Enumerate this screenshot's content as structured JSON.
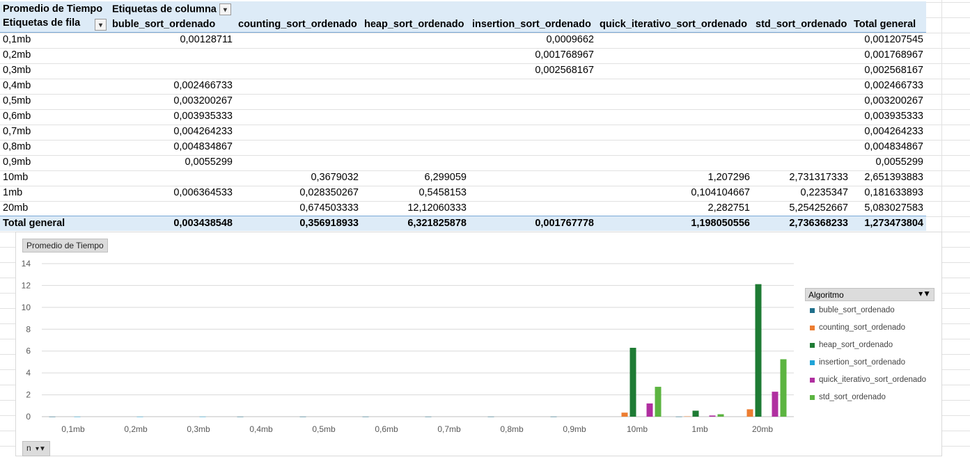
{
  "pivot": {
    "value_label": "Promedio de Tiempo",
    "column_label": "Etiquetas de columna",
    "row_label": "Etiquetas de fila",
    "columns": [
      "buble_sort_ordenado",
      "counting_sort_ordenado",
      "heap_sort_ordenado",
      "insertion_sort_ordenado",
      "quick_iterativo_sort_ordenado",
      "std_sort_ordenado",
      "Total general"
    ],
    "rows": [
      {
        "label": "0,1mb",
        "cells": [
          "0,00128711",
          "",
          "",
          "0,0009662",
          "",
          "",
          "0,001207545"
        ]
      },
      {
        "label": "0,2mb",
        "cells": [
          "",
          "",
          "",
          "0,001768967",
          "",
          "",
          "0,001768967"
        ]
      },
      {
        "label": "0,3mb",
        "cells": [
          "",
          "",
          "",
          "0,002568167",
          "",
          "",
          "0,002568167"
        ]
      },
      {
        "label": "0,4mb",
        "cells": [
          "0,002466733",
          "",
          "",
          "",
          "",
          "",
          "0,002466733"
        ]
      },
      {
        "label": "0,5mb",
        "cells": [
          "0,003200267",
          "",
          "",
          "",
          "",
          "",
          "0,003200267"
        ]
      },
      {
        "label": "0,6mb",
        "cells": [
          "0,003935333",
          "",
          "",
          "",
          "",
          "",
          "0,003935333"
        ]
      },
      {
        "label": "0,7mb",
        "cells": [
          "0,004264233",
          "",
          "",
          "",
          "",
          "",
          "0,004264233"
        ]
      },
      {
        "label": "0,8mb",
        "cells": [
          "0,004834867",
          "",
          "",
          "",
          "",
          "",
          "0,004834867"
        ]
      },
      {
        "label": "0,9mb",
        "cells": [
          "0,0055299",
          "",
          "",
          "",
          "",
          "",
          "0,0055299"
        ]
      },
      {
        "label": "10mb",
        "cells": [
          "",
          "0,3679032",
          "6,299059",
          "",
          "1,207296",
          "2,731317333",
          "2,651393883"
        ]
      },
      {
        "label": "1mb",
        "cells": [
          "0,006364533",
          "0,028350267",
          "0,5458153",
          "",
          "0,104104667",
          "0,2235347",
          "0,181633893"
        ]
      },
      {
        "label": "20mb",
        "cells": [
          "",
          "0,674503333",
          "12,12060333",
          "",
          "2,282751",
          "5,254252667",
          "5,083027583"
        ]
      }
    ],
    "total": {
      "label": "Total general",
      "cells": [
        "0,003438548",
        "0,356918933",
        "6,321825878",
        "0,001767778",
        "1,198050556",
        "2,736368233",
        "1,273473804"
      ]
    }
  },
  "chart_data": {
    "type": "bar",
    "value_button": "Promedio de Tiempo",
    "axis_button": "n",
    "legend_title": "Algoritmo",
    "categories": [
      "0,1mb",
      "0,2mb",
      "0,3mb",
      "0,4mb",
      "0,5mb",
      "0,6mb",
      "0,7mb",
      "0,8mb",
      "0,9mb",
      "10mb",
      "1mb",
      "20mb"
    ],
    "ylim": [
      0,
      14
    ],
    "yticks": [
      "0",
      "2",
      "4",
      "6",
      "8",
      "10",
      "12",
      "14"
    ],
    "grid": true,
    "legend_position": "right",
    "series": [
      {
        "name": "buble_sort_ordenado",
        "color": "#1f6f8b",
        "values": [
          0.00128711,
          null,
          null,
          0.002466733,
          0.003200267,
          0.003935333,
          0.004264233,
          0.004834867,
          0.0055299,
          null,
          0.006364533,
          null
        ]
      },
      {
        "name": "counting_sort_ordenado",
        "color": "#ed7d31",
        "values": [
          null,
          null,
          null,
          null,
          null,
          null,
          null,
          null,
          null,
          0.3679032,
          0.028350267,
          0.674503333
        ]
      },
      {
        "name": "heap_sort_ordenado",
        "color": "#1e7b34",
        "values": [
          null,
          null,
          null,
          null,
          null,
          null,
          null,
          null,
          null,
          6.299059,
          0.5458153,
          12.12060333
        ]
      },
      {
        "name": "insertion_sort_ordenado",
        "color": "#20a4d8",
        "values": [
          0.0009662,
          0.001768967,
          0.002568167,
          null,
          null,
          null,
          null,
          null,
          null,
          null,
          null,
          null
        ]
      },
      {
        "name": "quick_iterativo_sort_ordenado",
        "color": "#b02fa0",
        "values": [
          null,
          null,
          null,
          null,
          null,
          null,
          null,
          null,
          null,
          1.207296,
          0.104104667,
          2.282751
        ]
      },
      {
        "name": "std_sort_ordenado",
        "color": "#5cb441",
        "values": [
          null,
          null,
          null,
          null,
          null,
          null,
          null,
          null,
          null,
          2.731317333,
          0.2235347,
          5.254252667
        ]
      }
    ]
  }
}
